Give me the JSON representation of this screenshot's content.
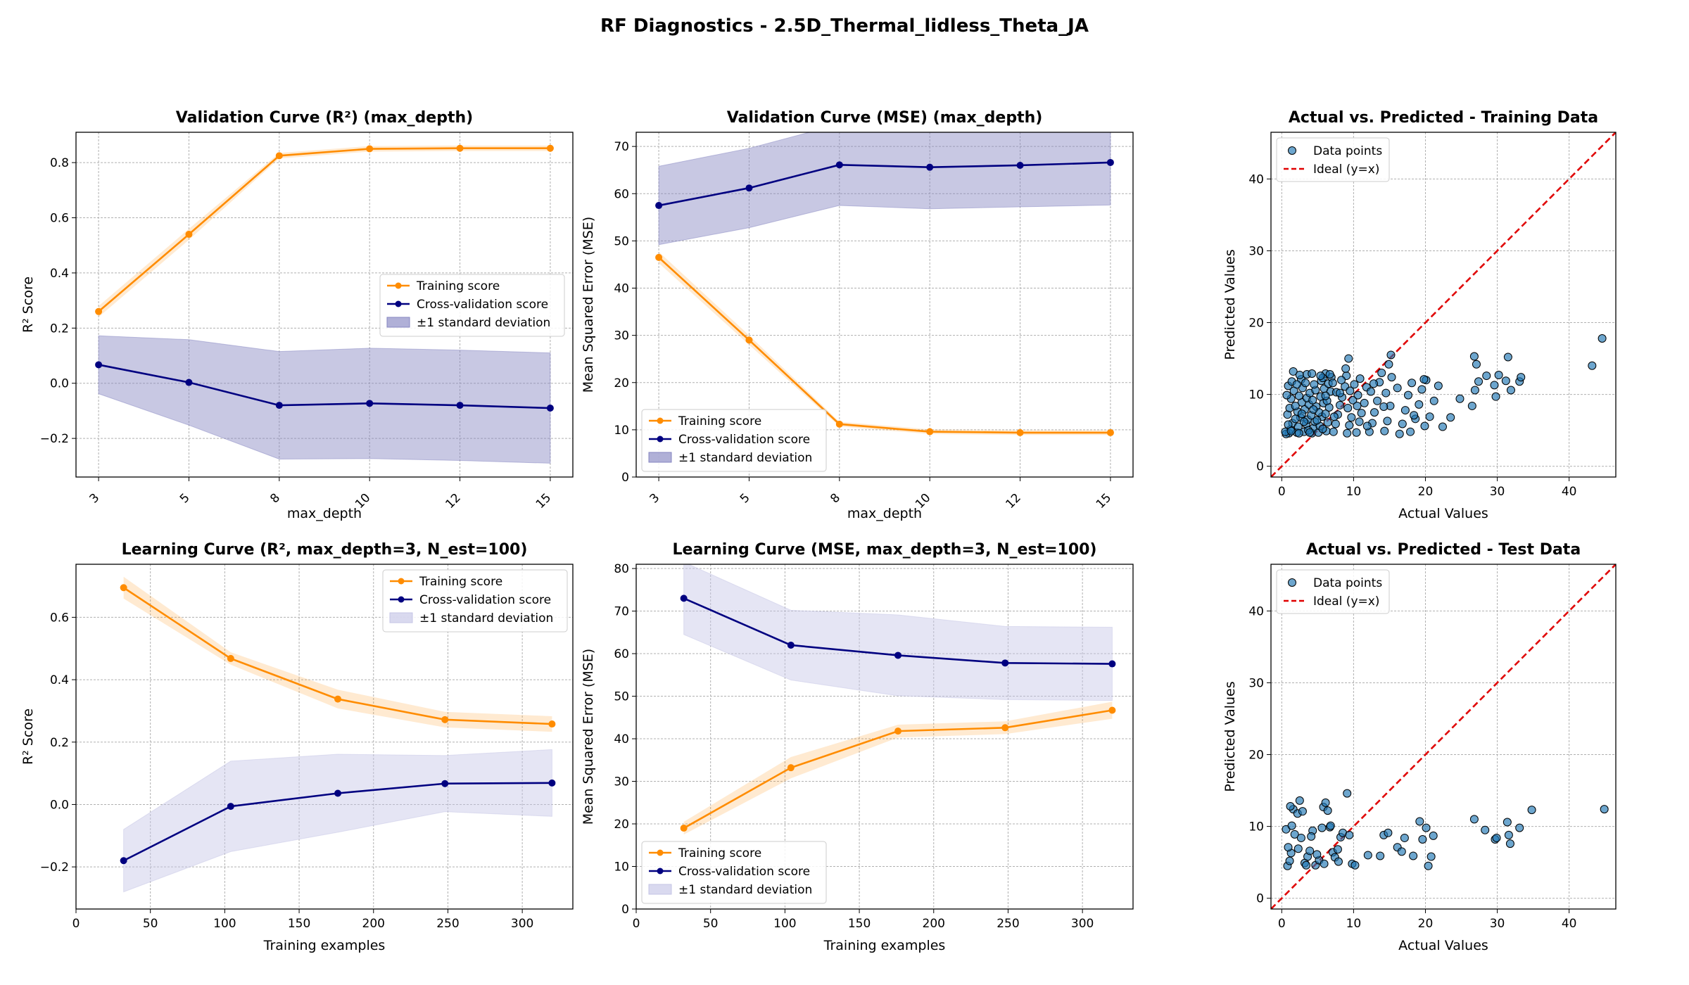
{
  "title": "RF Diagnostics - 2.5D_Thermal_lidless_Theta_JA",
  "colors": {
    "train": "#ff8c00",
    "cv": "#000080",
    "cv_band_strong": "#8686c2",
    "cv_band_light": "#c5c5e6",
    "scatter": "#1f77b4",
    "ideal": "#e00000"
  },
  "chart_data": [
    {
      "type": "line",
      "title": "Validation Curve (R²) (max_depth)",
      "xlabel": "max_depth",
      "ylabel": "R² Score",
      "x_axis": "categorical",
      "rotate_ticks": true,
      "categories": [
        "3",
        "5",
        "8",
        "10",
        "12",
        "15"
      ],
      "ylim": [
        -0.34,
        0.91
      ],
      "yticks": [
        -0.2,
        0.0,
        0.2,
        0.4,
        0.6,
        0.8
      ],
      "ytick_labels": [
        "−0.2",
        "0.0",
        "0.2",
        "0.4",
        "0.6",
        "0.8"
      ],
      "legend": "center-right",
      "grid": true,
      "band_style": "strong",
      "series": [
        {
          "name": "Training score",
          "role": "train",
          "values": [
            0.26,
            0.54,
            0.825,
            0.85,
            0.852,
            0.852
          ],
          "std": [
            0.02,
            0.02,
            0.01,
            0.01,
            0.01,
            0.01
          ]
        },
        {
          "name": "Cross-validation score",
          "role": "cv",
          "values": [
            0.067,
            0.003,
            -0.08,
            -0.073,
            -0.08,
            -0.09
          ],
          "std": [
            0.105,
            0.155,
            0.195,
            0.2,
            0.2,
            0.2
          ]
        }
      ],
      "band_label": "±1 standard deviation"
    },
    {
      "type": "line",
      "title": "Validation Curve (MSE) (max_depth)",
      "xlabel": "max_depth",
      "ylabel": "Mean Squared Error (MSE)",
      "x_axis": "categorical",
      "rotate_ticks": true,
      "categories": [
        "3",
        "5",
        "8",
        "10",
        "12",
        "15"
      ],
      "ylim": [
        0,
        73
      ],
      "yticks": [
        0,
        10,
        20,
        30,
        40,
        50,
        60,
        70
      ],
      "ytick_labels": [
        "0",
        "10",
        "20",
        "30",
        "40",
        "50",
        "60",
        "70"
      ],
      "legend": "lower-left",
      "grid": true,
      "band_style": "strong",
      "series": [
        {
          "name": "Training score",
          "role": "train",
          "values": [
            46.5,
            29,
            11.2,
            9.6,
            9.4,
            9.4
          ],
          "std": [
            1.2,
            1.0,
            0.5,
            0.5,
            0.5,
            0.5
          ]
        },
        {
          "name": "Cross-validation score",
          "role": "cv",
          "values": [
            57.5,
            61.2,
            66.1,
            65.6,
            66.0,
            66.6
          ],
          "std": [
            8.3,
            8.4,
            8.6,
            8.8,
            8.8,
            9.0
          ]
        }
      ],
      "band_label": "±1 standard deviation"
    },
    {
      "type": "scatter",
      "title": "Actual vs. Predicted - Training Data",
      "xlabel": "Actual Values",
      "ylabel": "Predicted Values",
      "xlim": [
        -1.5,
        46.5
      ],
      "ylim": [
        -1.5,
        46.5
      ],
      "xticks": [
        0,
        10,
        20,
        30,
        40
      ],
      "yticks": [
        0,
        10,
        20,
        30,
        40
      ],
      "legend": "top-left",
      "grid": true,
      "scatter_label": "Data points",
      "ideal_label": "Ideal (y=x)",
      "points": [
        [
          1,
          4.6
        ],
        [
          1.2,
          5.1
        ],
        [
          1.5,
          6
        ],
        [
          0.8,
          7.2
        ],
        [
          1.1,
          8.1
        ],
        [
          1.3,
          9.4
        ],
        [
          1.7,
          10.5
        ],
        [
          0.9,
          11.2
        ],
        [
          2.1,
          4.7
        ],
        [
          2.3,
          5.5
        ],
        [
          2.6,
          6.8
        ],
        [
          2.2,
          7.6
        ],
        [
          2.8,
          8.9
        ],
        [
          2.4,
          9.8
        ],
        [
          2.9,
          10.9
        ],
        [
          2.7,
          12.1
        ],
        [
          3.1,
          4.8
        ],
        [
          3.4,
          5.9
        ],
        [
          3.6,
          6.5
        ],
        [
          3.2,
          7.9
        ],
        [
          3.8,
          8.6
        ],
        [
          3.5,
          9.5
        ],
        [
          3.9,
          10.2
        ],
        [
          3.3,
          11.6
        ],
        [
          4.2,
          4.6
        ],
        [
          4.4,
          5.3
        ],
        [
          4.6,
          6.2
        ],
        [
          4.1,
          7.1
        ],
        [
          4.8,
          8.3
        ],
        [
          4.3,
          9.2
        ],
        [
          4.7,
          10.6
        ],
        [
          4.5,
          11.4
        ],
        [
          5.1,
          4.7
        ],
        [
          5.3,
          5.6
        ],
        [
          5.6,
          6.9
        ],
        [
          5.2,
          7.5
        ],
        [
          5.8,
          8.8
        ],
        [
          5.4,
          9.7
        ],
        [
          5.9,
          10.8
        ],
        [
          5.5,
          11.9
        ],
        [
          6.2,
          4.9
        ],
        [
          6.4,
          6.1
        ],
        [
          6.1,
          7.3
        ],
        [
          6.6,
          8.2
        ],
        [
          6.3,
          9.1
        ],
        [
          6.8,
          10.4
        ],
        [
          6.5,
          11.5
        ],
        [
          6.9,
          12.4
        ],
        [
          1.6,
          13.2
        ],
        [
          2.5,
          12.7
        ],
        [
          6.1,
          12.9
        ],
        [
          5.7,
          12.3
        ],
        [
          0.9,
          5.8
        ],
        [
          1.9,
          6.6
        ],
        [
          3.7,
          5.0
        ],
        [
          4.9,
          6.4
        ],
        [
          7.2,
          4.8
        ],
        [
          7.5,
          5.9
        ],
        [
          7.8,
          7.2
        ],
        [
          8.1,
          8.5
        ],
        [
          8.4,
          9.6
        ],
        [
          7.6,
          10.3
        ],
        [
          8.8,
          11.1
        ],
        [
          9.1,
          4.6
        ],
        [
          9.4,
          5.7
        ],
        [
          9.7,
          6.8
        ],
        [
          9.2,
          8.1
        ],
        [
          9.9,
          9.2
        ],
        [
          9.5,
          10.5
        ],
        [
          10.1,
          11.4
        ],
        [
          9,
          12.6
        ],
        [
          8.9,
          13.6
        ],
        [
          9.3,
          15
        ],
        [
          10.4,
          4.7
        ],
        [
          10.8,
          6.2
        ],
        [
          11.1,
          7.4
        ],
        [
          11.5,
          8.8
        ],
        [
          10.6,
          9.9
        ],
        [
          11.8,
          11
        ],
        [
          10.9,
          12.2
        ],
        [
          12.2,
          4.8
        ],
        [
          12.6,
          6
        ],
        [
          12.9,
          7.5
        ],
        [
          13.3,
          9.1
        ],
        [
          12.4,
          10.4
        ],
        [
          13.6,
          11.7
        ],
        [
          13.9,
          13
        ],
        [
          14.3,
          4.9
        ],
        [
          14.7,
          6.3
        ],
        [
          15.1,
          8.4
        ],
        [
          14.5,
          10.2
        ],
        [
          15.3,
          12.4
        ],
        [
          14.9,
          14.2
        ],
        [
          15.2,
          15.5
        ],
        [
          16.8,
          5.9
        ],
        [
          17.2,
          7.8
        ],
        [
          17.6,
          9.9
        ],
        [
          18.1,
          11.6
        ],
        [
          16.4,
          4.5
        ],
        [
          18.6,
          6.6
        ],
        [
          19.1,
          8.6
        ],
        [
          19.5,
          10.7
        ],
        [
          20.1,
          12
        ],
        [
          17.9,
          4.8
        ],
        [
          20.6,
          6.9
        ],
        [
          21.2,
          9.1
        ],
        [
          19.8,
          12.1
        ],
        [
          22.4,
          5.5
        ],
        [
          23.5,
          6.8
        ],
        [
          24.8,
          9.4
        ],
        [
          26.9,
          10.6
        ],
        [
          27.1,
          14.2
        ],
        [
          26.8,
          15.3
        ],
        [
          27.4,
          11.8
        ],
        [
          26.5,
          8.4
        ],
        [
          28.5,
          12.6
        ],
        [
          29.6,
          11.3
        ],
        [
          29.8,
          9.7
        ],
        [
          30.2,
          12.7
        ],
        [
          31.2,
          11.9
        ],
        [
          31.5,
          15.2
        ],
        [
          31.9,
          10.6
        ],
        [
          33.1,
          11.8
        ],
        [
          33.3,
          12.4
        ],
        [
          43.2,
          14
        ],
        [
          44.6,
          17.8
        ],
        [
          0.6,
          4.5
        ],
        [
          0.7,
          9.9
        ],
        [
          1.4,
          11.8
        ],
        [
          2.1,
          11.4
        ],
        [
          3.5,
          12.8
        ],
        [
          4.2,
          12.9
        ],
        [
          5.4,
          12.6
        ],
        [
          6.7,
          12.8
        ],
        [
          7.1,
          11.6
        ],
        [
          8.3,
          12
        ],
        [
          1.9,
          8.4
        ],
        [
          2.8,
          7.3
        ],
        [
          3.1,
          6.2
        ],
        [
          4.4,
          7.9
        ],
        [
          5.7,
          5.2
        ],
        [
          6.1,
          9.8
        ],
        [
          7.3,
          6.9
        ],
        [
          8.1,
          10.2
        ],
        [
          10.5,
          8.4
        ],
        [
          11.9,
          5.6
        ],
        [
          12.8,
          11.5
        ],
        [
          14.2,
          8.3
        ],
        [
          16.1,
          10.9
        ],
        [
          18.4,
          7.1
        ],
        [
          19.9,
          5.6
        ],
        [
          21.8,
          11.2
        ],
        [
          0.5,
          4.8
        ],
        [
          1.3,
          4.9
        ],
        [
          2.4,
          4.6
        ],
        [
          3.9,
          4.7
        ]
      ]
    },
    {
      "type": "line",
      "title": "Learning Curve (R², max_depth=3, N_est=100)",
      "xlabel": "Training examples",
      "ylabel": "R² Score",
      "x_axis": "numeric",
      "xlim": [
        0,
        334
      ],
      "xticks": [
        0,
        50,
        100,
        150,
        200,
        250,
        300
      ],
      "ylim": [
        -0.335,
        0.77
      ],
      "yticks": [
        -0.2,
        0.0,
        0.2,
        0.4,
        0.6
      ],
      "ytick_labels": [
        "−0.2",
        "0.0",
        "0.2",
        "0.4",
        "0.6"
      ],
      "legend": "top-right",
      "grid": true,
      "band_style": "light",
      "x": [
        32,
        104,
        176,
        248,
        320
      ],
      "series": [
        {
          "name": "Training score",
          "role": "train",
          "values": [
            0.695,
            0.468,
            0.338,
            0.272,
            0.258
          ],
          "std": [
            0.035,
            0.02,
            0.03,
            0.025,
            0.025
          ]
        },
        {
          "name": "Cross-validation score",
          "role": "cv",
          "values": [
            -0.18,
            -0.006,
            0.036,
            0.067,
            0.069
          ],
          "std": [
            0.1,
            0.145,
            0.125,
            0.09,
            0.107
          ]
        }
      ],
      "band_label": "±1 standard deviation"
    },
    {
      "type": "line",
      "title": "Learning Curve (MSE, max_depth=3, N_est=100)",
      "xlabel": "Training examples",
      "ylabel": "Mean Squared Error (MSE)",
      "x_axis": "numeric",
      "xlim": [
        0,
        334
      ],
      "xticks": [
        0,
        50,
        100,
        150,
        200,
        250,
        300
      ],
      "ylim": [
        0,
        81
      ],
      "yticks": [
        0,
        10,
        20,
        30,
        40,
        50,
        60,
        70,
        80
      ],
      "ytick_labels": [
        "0",
        "10",
        "20",
        "30",
        "40",
        "50",
        "60",
        "70",
        "80"
      ],
      "legend": "lower-left",
      "grid": true,
      "band_style": "light",
      "x": [
        32,
        104,
        176,
        248,
        320
      ],
      "series": [
        {
          "name": "Training score",
          "role": "train",
          "values": [
            19,
            33.2,
            41.8,
            42.6,
            46.7
          ],
          "std": [
            1.5,
            2.5,
            1.5,
            1.5,
            2.0
          ]
        },
        {
          "name": "Cross-validation score",
          "role": "cv",
          "values": [
            73,
            62,
            59.6,
            57.8,
            57.6
          ],
          "std": [
            8.5,
            8.2,
            9.5,
            8.6,
            8.6
          ]
        }
      ],
      "band_label": "±1 standard deviation"
    },
    {
      "type": "scatter",
      "title": "Actual vs. Predicted - Test Data",
      "xlabel": "Actual Values",
      "ylabel": "Predicted Values",
      "xlim": [
        -1.5,
        46.5
      ],
      "ylim": [
        -1.5,
        46.5
      ],
      "xticks": [
        0,
        10,
        20,
        30,
        40
      ],
      "yticks": [
        0,
        10,
        20,
        30,
        40
      ],
      "legend": "top-left",
      "grid": true,
      "scatter_label": "Data points",
      "ideal_label": "Ideal (y=x)",
      "points": [
        [
          0.8,
          4.5
        ],
        [
          1.1,
          5.2
        ],
        [
          1.3,
          6.3
        ],
        [
          0.9,
          7.1
        ],
        [
          1.6,
          12.4
        ],
        [
          1.2,
          12.8
        ],
        [
          2.2,
          11.8
        ],
        [
          2.5,
          13.6
        ],
        [
          2.9,
          12.1
        ],
        [
          3.2,
          4.9
        ],
        [
          3.6,
          5.8
        ],
        [
          3.9,
          6.6
        ],
        [
          4.3,
          9.4
        ],
        [
          4.1,
          8.6
        ],
        [
          4.7,
          4.6
        ],
        [
          5.2,
          5.3
        ],
        [
          5.6,
          9.8
        ],
        [
          5.8,
          12.7
        ],
        [
          6.1,
          13.3
        ],
        [
          6.4,
          12.2
        ],
        [
          6.7,
          9.9
        ],
        [
          7.1,
          6.4
        ],
        [
          7.4,
          5.7
        ],
        [
          7.8,
          6.8
        ],
        [
          8.2,
          8.5
        ],
        [
          8.5,
          9.1
        ],
        [
          9.1,
          14.6
        ],
        [
          9.4,
          8.8
        ],
        [
          9.8,
          4.8
        ],
        [
          10.2,
          4.6
        ],
        [
          12,
          6
        ],
        [
          13.7,
          5.9
        ],
        [
          14.2,
          8.8
        ],
        [
          14.8,
          9.1
        ],
        [
          16.1,
          7.1
        ],
        [
          16.7,
          6.5
        ],
        [
          17.1,
          8.4
        ],
        [
          18.3,
          5.9
        ],
        [
          19.2,
          10.7
        ],
        [
          19.6,
          8.2
        ],
        [
          20.1,
          9.8
        ],
        [
          20.4,
          4.5
        ],
        [
          20.8,
          5.8
        ],
        [
          21.1,
          8.7
        ],
        [
          26.8,
          11
        ],
        [
          28.3,
          9.5
        ],
        [
          29.7,
          8.2
        ],
        [
          29.9,
          8.4
        ],
        [
          31.4,
          10.6
        ],
        [
          31.6,
          8.8
        ],
        [
          31.8,
          7.6
        ],
        [
          33.1,
          9.8
        ],
        [
          34.8,
          12.3
        ],
        [
          44.9,
          12.4
        ],
        [
          0.6,
          9.6
        ],
        [
          1.8,
          8.9
        ],
        [
          2.7,
          8.4
        ],
        [
          3.4,
          4.6
        ],
        [
          4.9,
          6.1
        ],
        [
          5.9,
          4.8
        ],
        [
          6.8,
          10.1
        ],
        [
          7.9,
          5.1
        ],
        [
          1.4,
          10.1
        ],
        [
          2.3,
          6.9
        ]
      ]
    }
  ]
}
